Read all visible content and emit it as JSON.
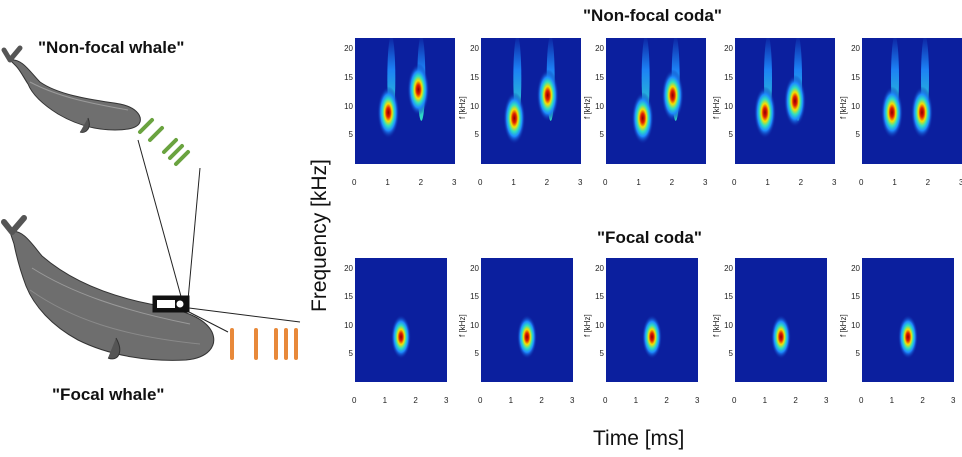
{
  "labels": {
    "nonfocal_whale": "\"Non-focal whale\"",
    "focal_whale": "\"Focal whale\"",
    "nonfocal_coda": "\"Non-focal coda\"",
    "focal_coda": "\"Focal coda\"",
    "y_axis_title": "Frequency [kHz]",
    "x_axis_title": "Time [ms]",
    "panel_ylabel": "f [kHz]"
  },
  "colors": {
    "nonfocal_click_marks": "#6aa33f",
    "focal_click_marks": "#e8893a",
    "spectrogram_background": "#0b1f9e"
  },
  "icons": [
    "sperm-whale-illustration",
    "acoustic-tag-icon"
  ],
  "chart_data": [
    {
      "type": "heatmap",
      "title": "\"Non-focal coda\"",
      "panels": 5,
      "xlim": [
        0,
        3
      ],
      "ylim": [
        0,
        22
      ],
      "xticks": [
        "0",
        "1",
        "2",
        "3"
      ],
      "yticks": [
        "5",
        "10",
        "15",
        "20"
      ],
      "ylabel": "f [kHz]",
      "ylabel_panels": [
        2,
        3,
        4,
        5
      ],
      "pulses": [
        [
          {
            "t": 1.0,
            "f": 9
          },
          {
            "t": 1.9,
            "f": 13
          }
        ],
        [
          {
            "t": 1.0,
            "f": 8
          },
          {
            "t": 2.0,
            "f": 12
          }
        ],
        [
          {
            "t": 1.1,
            "f": 8
          },
          {
            "t": 2.0,
            "f": 12
          }
        ],
        [
          {
            "t": 0.9,
            "f": 9
          },
          {
            "t": 1.8,
            "f": 11
          }
        ],
        [
          {
            "t": 0.9,
            "f": 9
          },
          {
            "t": 1.8,
            "f": 9
          }
        ]
      ]
    },
    {
      "type": "heatmap",
      "title": "\"Focal coda\"",
      "panels": 5,
      "xlim": [
        0,
        3
      ],
      "ylim": [
        0,
        22
      ],
      "xticks": [
        "0",
        "1",
        "2",
        "3"
      ],
      "yticks": [
        "5",
        "10",
        "15",
        "20"
      ],
      "ylabel": "f [kHz]",
      "ylabel_panels": [
        2,
        3,
        4,
        5
      ],
      "pulses": [
        [
          {
            "t": 1.5,
            "f": 8
          }
        ],
        [
          {
            "t": 1.5,
            "f": 8
          }
        ],
        [
          {
            "t": 1.5,
            "f": 8
          }
        ],
        [
          {
            "t": 1.5,
            "f": 8
          }
        ],
        [
          {
            "t": 1.5,
            "f": 8
          }
        ]
      ]
    }
  ]
}
